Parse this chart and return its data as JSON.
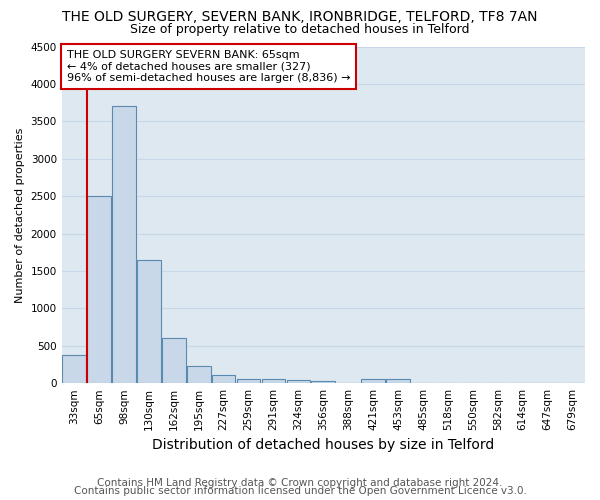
{
  "title": "THE OLD SURGERY, SEVERN BANK, IRONBRIDGE, TELFORD, TF8 7AN",
  "subtitle": "Size of property relative to detached houses in Telford",
  "xlabel": "Distribution of detached houses by size in Telford",
  "ylabel": "Number of detached properties",
  "bins": [
    "33sqm",
    "65sqm",
    "98sqm",
    "130sqm",
    "162sqm",
    "195sqm",
    "227sqm",
    "259sqm",
    "291sqm",
    "324sqm",
    "356sqm",
    "388sqm",
    "421sqm",
    "453sqm",
    "485sqm",
    "518sqm",
    "550sqm",
    "582sqm",
    "614sqm",
    "647sqm",
    "679sqm"
  ],
  "values": [
    370,
    2500,
    3700,
    1650,
    600,
    225,
    110,
    60,
    55,
    40,
    35,
    0,
    50,
    50,
    0,
    0,
    0,
    0,
    0,
    0,
    0
  ],
  "bar_color": "#c8d8e8",
  "bar_edge_color": "#5a8ab0",
  "highlight_bar_index": 1,
  "highlight_line_color": "#cc0000",
  "ylim": [
    0,
    4500
  ],
  "annotation_text": "THE OLD SURGERY SEVERN BANK: 65sqm\n← 4% of detached houses are smaller (327)\n96% of semi-detached houses are larger (8,836) →",
  "annotation_box_color": "#ffffff",
  "annotation_border_color": "#cc0000",
  "footer_line1": "Contains HM Land Registry data © Crown copyright and database right 2024.",
  "footer_line2": "Contains public sector information licensed under the Open Government Licence v3.0.",
  "bg_color": "#ffffff",
  "grid_color": "#c8d8e8",
  "title_fontsize": 10,
  "subtitle_fontsize": 9,
  "xlabel_fontsize": 10,
  "ylabel_fontsize": 8,
  "tick_fontsize": 7.5,
  "annotation_fontsize": 8,
  "footer_fontsize": 7.5,
  "yticks": [
    0,
    500,
    1000,
    1500,
    2000,
    2500,
    3000,
    3500,
    4000,
    4500
  ]
}
